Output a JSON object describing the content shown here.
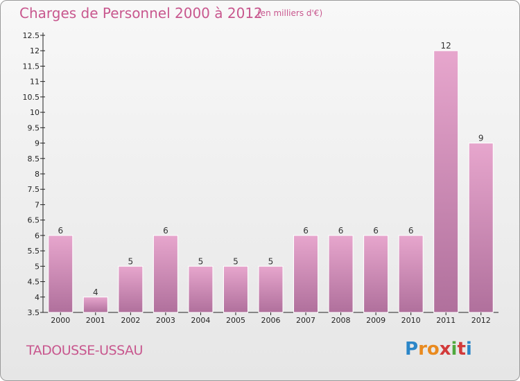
{
  "title": "Charges de Personnel 2000 à 2012",
  "unit": "(en milliers d'€)",
  "place": "TADOUSSE-USSAU",
  "logo": {
    "letters": [
      "P",
      "r",
      "o",
      "x",
      "i",
      "t",
      "i"
    ],
    "colors": [
      "#2b86c8",
      "#e98a1f",
      "#e98a1f",
      "#d23a3a",
      "#4fa83d",
      "#d23a3a",
      "#2b86c8"
    ]
  },
  "colors": {
    "bar_top": "#e7a6cd",
    "bar_bottom": "#b0709c",
    "title": "#c8578e"
  },
  "chart_data": {
    "type": "bar",
    "categories": [
      "2000",
      "2001",
      "2002",
      "2003",
      "2004",
      "2005",
      "2006",
      "2007",
      "2008",
      "2009",
      "2010",
      "2011",
      "2012"
    ],
    "values": [
      6,
      4,
      5,
      6,
      5,
      5,
      5,
      6,
      6,
      6,
      6,
      12,
      9
    ],
    "data_labels": [
      "6",
      "4",
      "5",
      "6",
      "5",
      "5",
      "5",
      "6",
      "6",
      "6",
      "6",
      "12",
      "9"
    ],
    "y_ticks": [
      "3.5",
      "4",
      "4.5",
      "5",
      "5.5",
      "6",
      "6.5",
      "7",
      "7.5",
      "8",
      "8.5",
      "9",
      "9.5",
      "10",
      "10.5",
      "11",
      "11.5",
      "12",
      "12.5"
    ],
    "ylim": [
      3.5,
      12.5
    ],
    "grid": false
  }
}
